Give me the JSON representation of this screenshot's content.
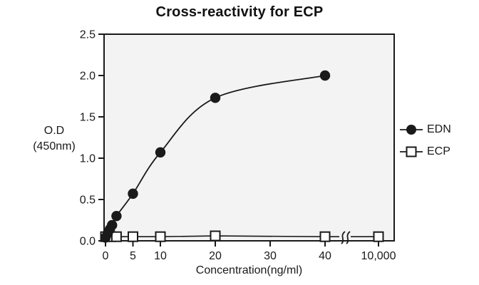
{
  "chart_data": {
    "type": "line",
    "title": "Cross-reactivity for ECP",
    "xlabel": "Concentration(ng/ml)",
    "ylabel_lines": [
      "O.D",
      "(450nm)"
    ],
    "ylim": [
      0,
      2.5
    ],
    "grid": false,
    "plot_bg": "#f4f3f3",
    "axis_color": "#1a1a1a",
    "x_ticks": [
      {
        "value": 0,
        "label": "0"
      },
      {
        "value": 5,
        "label": "5"
      },
      {
        "value": 10,
        "label": "10"
      },
      {
        "value": 20,
        "label": "20"
      },
      {
        "value": 30,
        "label": "30"
      },
      {
        "value": 40,
        "label": "40"
      },
      {
        "value": 10000,
        "label": "10,000"
      }
    ],
    "y_ticks": [
      {
        "value": 0.0,
        "label": "0.0"
      },
      {
        "value": 0.5,
        "label": "0.5"
      },
      {
        "value": 1.0,
        "label": "1.0"
      },
      {
        "value": 1.5,
        "label": "1.5"
      },
      {
        "value": 2.0,
        "label": "2.0"
      },
      {
        "value": 2.5,
        "label": "2.5"
      }
    ],
    "axis_break": {
      "between": [
        40,
        10000
      ],
      "style": "double-squiggle"
    },
    "series": [
      {
        "name": "ECP",
        "marker": "open-square",
        "color": "#1a1a1a",
        "points": [
          [
            0,
            0.05
          ],
          [
            1,
            0.05
          ],
          [
            2,
            0.05
          ],
          [
            5,
            0.05
          ],
          [
            10,
            0.05
          ],
          [
            20,
            0.06
          ],
          [
            40,
            0.05
          ],
          [
            10000,
            0.05
          ]
        ]
      },
      {
        "name": "EDN",
        "marker": "filled-circle",
        "color": "#1a1a1a",
        "points": [
          [
            0,
            0.04
          ],
          [
            0.4,
            0.09
          ],
          [
            0.8,
            0.14
          ],
          [
            1.2,
            0.19
          ],
          [
            2,
            0.3
          ],
          [
            5,
            0.57
          ],
          [
            10,
            1.07
          ],
          [
            20,
            1.73
          ],
          [
            40,
            2.0
          ]
        ]
      }
    ],
    "legend": {
      "position": "right",
      "items": [
        {
          "label": "EDN",
          "marker": "filled-circle"
        },
        {
          "label": "ECP",
          "marker": "open-square"
        }
      ]
    }
  }
}
